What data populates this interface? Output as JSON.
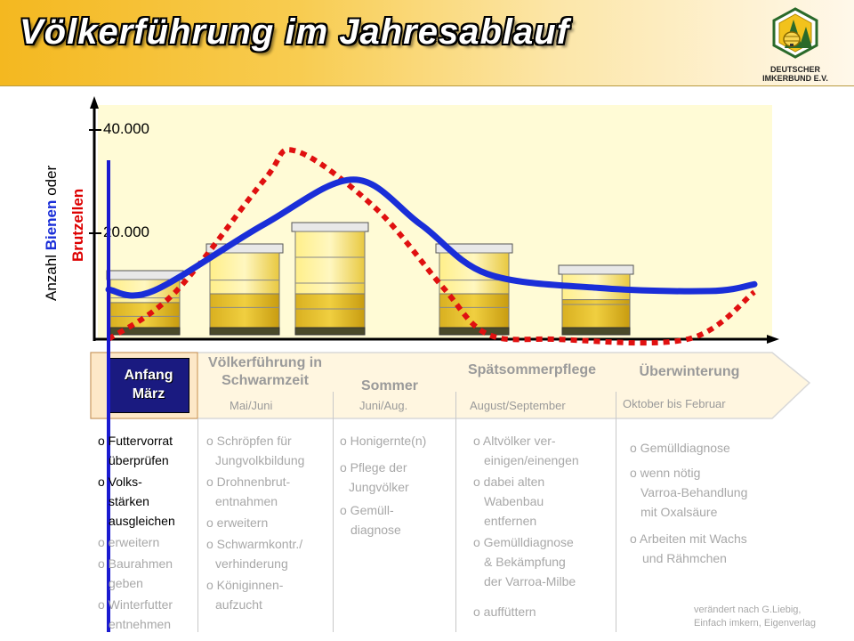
{
  "header": {
    "title": "Völkerführung im Jahresablauf",
    "logo": {
      "line1": "DEUTSCHER",
      "line2": "IMKERBUND E.V."
    }
  },
  "chart_data": {
    "type": "line",
    "y_label_parts": [
      "Anzahl ",
      "Bienen",
      " oder"
    ],
    "y_label_red": "Brutzellen",
    "y_ticks": [
      "40.000",
      "20.000"
    ],
    "ylim": [
      0,
      40000
    ],
    "grid": false,
    "series": [
      {
        "color": "#1a2ed8",
        "style": "solid",
        "points": [
          [
            0,
            9500
          ],
          [
            0.1,
            9200
          ],
          [
            0.35,
            22000
          ],
          [
            0.55,
            30500
          ],
          [
            0.7,
            22000
          ],
          [
            0.85,
            12500
          ],
          [
            1.1,
            9800
          ],
          [
            1.35,
            9200
          ],
          [
            1.45,
            10500
          ]
        ]
      },
      {
        "color": "#dd0000",
        "style": "dotted",
        "points": [
          [
            0,
            0
          ],
          [
            0.15,
            9000
          ],
          [
            0.35,
            30500
          ],
          [
            0.42,
            36000
          ],
          [
            0.6,
            25000
          ],
          [
            0.75,
            10000
          ],
          [
            0.85,
            1000
          ],
          [
            1.0,
            0
          ],
          [
            1.3,
            0
          ],
          [
            1.45,
            9000
          ]
        ]
      }
    ]
  },
  "phases": [
    {
      "label_lines": [
        "Anfang",
        "März"
      ],
      "period": ""
    },
    {
      "label_lines": [
        "Völkerführung in",
        "Schwarmzeit"
      ],
      "period": "Mai/Juni"
    },
    {
      "label_lines": [
        "Sommer"
      ],
      "period": "Juni/Aug."
    },
    {
      "label_lines": [
        "Spätsommerpflege"
      ],
      "period": "August/September"
    },
    {
      "label_lines": [
        "Überwinterung"
      ],
      "period": "Oktober bis Februar"
    }
  ],
  "columns": [
    {
      "items": [
        {
          "lines": [
            "o Futtervorrat",
            "überprüfen"
          ],
          "dark": true
        },
        {
          "lines": [
            "o Volks-",
            "stärken",
            "ausgleichen"
          ],
          "dark": true
        },
        {
          "lines": [
            "o erweitern"
          ],
          "dark": false
        },
        {
          "lines": [
            "o Baurahmen",
            "geben"
          ],
          "dark": false
        },
        {
          "lines": [
            "o Winterfutter",
            "entnehmen"
          ],
          "dark": false
        }
      ]
    },
    {
      "items": [
        {
          "lines": [
            "o Schröpfen für",
            "Jungvolkbildung"
          ]
        },
        {
          "lines": [
            "o Drohnenbrut-",
            "entnahmen"
          ]
        },
        {
          "lines": [
            "o erweitern"
          ]
        },
        {
          "lines": [
            "o Schwarmkontr./",
            "verhinderung"
          ]
        },
        {
          "lines": [
            "o Königinnen-",
            "aufzucht"
          ]
        }
      ]
    },
    {
      "items": [
        {
          "lines": [
            "o Honigernte(n)"
          ]
        },
        {
          "lines": [
            "o Pflege der",
            "Jungvölker"
          ]
        },
        {
          "lines": [
            "o Gemüll-",
            "diagnose"
          ]
        }
      ]
    },
    {
      "items": [
        {
          "lines": [
            "o Altvölker ver-",
            "einigen/einengen"
          ]
        },
        {
          "lines": [
            "o dabei alten",
            "Wabenbau",
            "entfernen"
          ]
        },
        {
          "lines": [
            "o Gemülldiagnose",
            "& Bekämpfung",
            "der Varroa-Milbe"
          ]
        },
        {
          "lines": [
            "o auffüttern"
          ]
        }
      ]
    },
    {
      "items": [
        {
          "lines": [
            "o Gemülldiagnose"
          ]
        },
        {
          "lines": [
            "o wenn nötig",
            "Varroa-Behandlung",
            "mit Oxalsäure"
          ]
        },
        {
          "lines": [
            "o Arbeiten mit Wachs",
            "und Rähmchen"
          ]
        }
      ]
    }
  ],
  "credit": {
    "line1": "verändert nach G.Liebig,",
    "line2": "Einfach imkern, Eigenverlag"
  }
}
